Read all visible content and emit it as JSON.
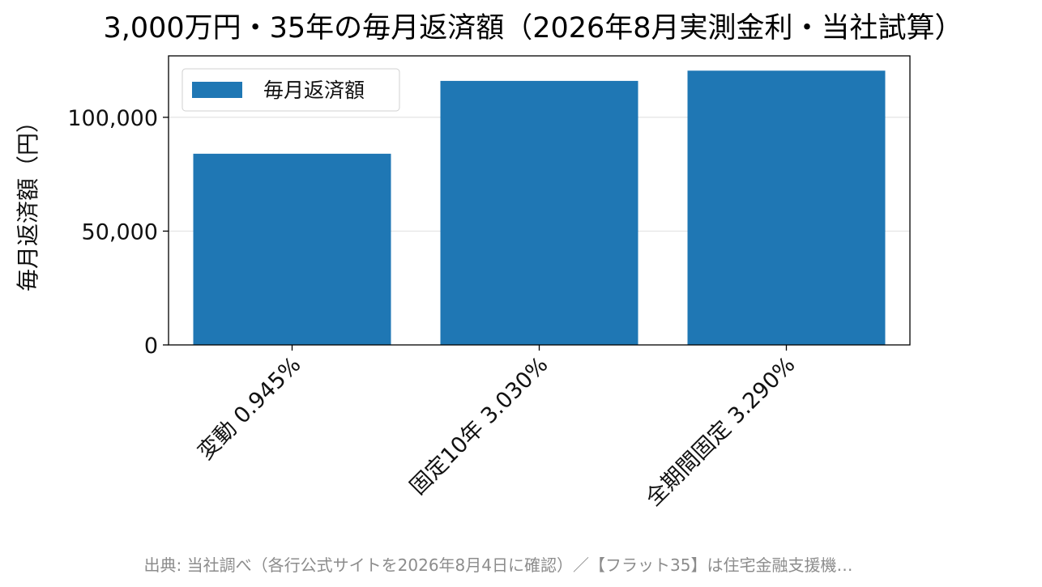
{
  "chart_data": {
    "type": "bar",
    "title": "3,000万円・35年の毎月返済額（2026年8月実測金利・当社試算）",
    "xlabel": "",
    "ylabel": "毎月返済額（円）",
    "categories": [
      "変動 0.945%",
      "固定10年 3.030%",
      "全期間固定 3.290%"
    ],
    "series": [
      {
        "name": "毎月返済額",
        "values": [
          84000,
          116000,
          120500
        ],
        "color": "#1f77b4"
      }
    ],
    "ylim": [
      0,
      127000
    ],
    "yticks": [
      0,
      50000,
      100000
    ],
    "ytick_labels": [
      "0",
      "50,000",
      "100,000"
    ],
    "grid": "y",
    "legend_position": "top-left"
  },
  "footer": {
    "source": "出典: 当社調べ（各行公式サイトを2026年8月4日に確認）／【フラット35】は住宅金融支援機…"
  }
}
